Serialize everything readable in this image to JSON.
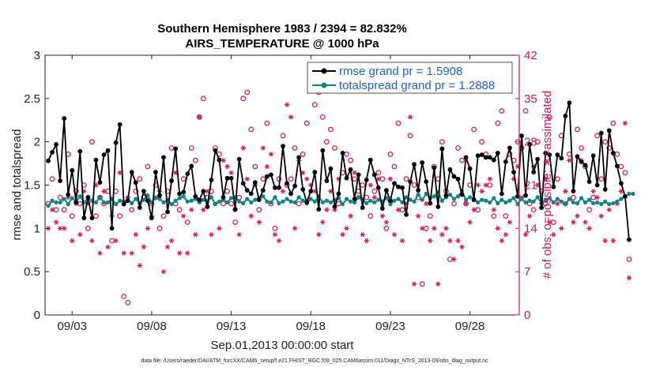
{
  "chart_data": {
    "type": "line",
    "title": "Southern Hemisphere 1983 / 2394 = 82.832%",
    "subtitle": "AIRS_TEMPERATURE @ 1000 hPa",
    "xlabel": "Sep.01,2013 00:00:00 start",
    "ylabel": "rmse and totalspread",
    "y2label": "# of obs: o=possible; ∗=assimilated",
    "footnote": "data file: /Users/raeder/DAI/ATM_forcXX/CAM6_setup/f.e21.FHIST_BGC.f09_025.CAM6assim.011/Diags_NTrS_2013-09/obs_diag_output.nc",
    "xlim": [
      1.3,
      31.1
    ],
    "ylim": [
      0,
      3
    ],
    "y2lim": [
      0,
      42
    ],
    "x_ticks": [
      3,
      8,
      13,
      18,
      23,
      28
    ],
    "x_tick_labels": [
      "09/03",
      "09/08",
      "09/13",
      "09/18",
      "09/23",
      "09/28"
    ],
    "y_ticks": [
      "0",
      "0.5",
      "1",
      "1.5",
      "2",
      "2.5",
      "3"
    ],
    "y2_ticks": [
      "0",
      "7",
      "14",
      "21",
      "28",
      "35",
      "42"
    ],
    "legend_position": "top-right",
    "x_start": 1.5,
    "x_step": 0.25,
    "series": [
      {
        "name": "rmse grand pr = 1.5908",
        "color": "#000000",
        "axis": "left",
        "values": [
          1.78,
          1.88,
          1.97,
          1.55,
          2.27,
          1.39,
          1.67,
          1.3,
          1.89,
          1.12,
          1.36,
          1.12,
          1.79,
          1.53,
          1.85,
          1.9,
          1.0,
          1.99,
          2.2,
          1.28,
          1.32,
          1.65,
          1.53,
          1.24,
          1.43,
          1.32,
          1.12,
          1.65,
          1.38,
          1.82,
          1.19,
          1.55,
          1.92,
          1.4,
          1.42,
          1.63,
          1.72,
          1.37,
          1.33,
          1.43,
          1.25,
          1.56,
          1.9,
          1.79,
          1.36,
          1.58,
          1.58,
          1.22,
          1.8,
          1.52,
          1.44,
          1.4,
          1.53,
          1.33,
          1.44,
          1.6,
          1.62,
          1.47,
          1.47,
          1.95,
          1.52,
          1.4,
          1.49,
          1.82,
          1.45,
          1.3,
          1.43,
          1.65,
          1.22,
          1.9,
          1.55,
          1.69,
          1.25,
          1.4,
          1.87,
          1.58,
          1.68,
          1.34,
          1.62,
          1.24,
          1.56,
          1.79,
          1.62,
          1.47,
          1.23,
          1.44,
          1.32,
          1.52,
          1.48,
          1.47,
          1.16,
          1.54,
          1.74,
          1.44,
          1.76,
          1.54,
          1.29,
          1.7,
          1.25,
          1.92,
          1.38,
          1.68,
          1.6,
          1.57,
          1.39,
          1.82,
          1.69,
          1.33,
          1.84,
          1.85,
          1.82,
          1.82,
          1.79,
          1.87,
          1.4,
          1.77,
          1.93,
          1.65,
          1.37,
          2.07,
          1.38,
          1.97,
          1.65,
          1.8,
          1.24,
          1.87,
          1.85,
          1.48,
          1.85,
          1.81,
          2.3,
          2.45,
          1.43,
          1.83,
          1.77,
          1.73,
          1.54,
          1.84,
          1.5,
          2.1,
          1.45,
          2.13,
          1.87,
          1.72,
          1.52,
          1.37,
          0.87
        ]
      },
      {
        "name": "totalspread grand pr = 1.2888",
        "color": "#0f8583",
        "axis": "left",
        "values": [
          1.26,
          1.32,
          1.3,
          1.3,
          1.34,
          1.28,
          1.35,
          1.31,
          1.37,
          1.3,
          1.35,
          1.32,
          1.3,
          1.36,
          1.3,
          1.3,
          1.34,
          1.28,
          1.32,
          1.31,
          1.33,
          1.29,
          1.34,
          1.29,
          1.33,
          1.38,
          1.3,
          1.35,
          1.34,
          1.3,
          1.33,
          1.28,
          1.32,
          1.35,
          1.37,
          1.31,
          1.32,
          1.34,
          1.3,
          1.33,
          1.31,
          1.36,
          1.28,
          1.31,
          1.33,
          1.3,
          1.35,
          1.36,
          1.31,
          1.29,
          1.34,
          1.3,
          1.33,
          1.35,
          1.37,
          1.31,
          1.3,
          1.36,
          1.29,
          1.31,
          1.34,
          1.31,
          1.3,
          1.36,
          1.32,
          1.29,
          1.34,
          1.31,
          1.37,
          1.3,
          1.32,
          1.3,
          1.33,
          1.35,
          1.28,
          1.34,
          1.31,
          1.3,
          1.36,
          1.34,
          1.29,
          1.32,
          1.3,
          1.33,
          1.31,
          1.35,
          1.28,
          1.32,
          1.34,
          1.3,
          1.36,
          1.33,
          1.31,
          1.39,
          1.33,
          1.4,
          1.35,
          1.37,
          1.42,
          1.32,
          1.36,
          1.39,
          1.34,
          1.37,
          1.43,
          1.33,
          1.36,
          1.34,
          1.3,
          1.33,
          1.32,
          1.3,
          1.35,
          1.29,
          1.33,
          1.3,
          1.32,
          1.35,
          1.28,
          1.34,
          1.3,
          1.32,
          1.31,
          1.36,
          1.29,
          1.33,
          1.35,
          1.3,
          1.34,
          1.31,
          1.28,
          1.34,
          1.3,
          1.29,
          1.35,
          1.3,
          1.33,
          1.29,
          1.3,
          1.28,
          1.31,
          1.28,
          1.29,
          1.31,
          1.34,
          1.37,
          1.4,
          1.4
        ]
      },
      {
        "name": "obs possible",
        "color": "#d4145a",
        "axis": "right",
        "marker": "circle",
        "values": [
          18,
          22,
          17,
          19,
          17,
          26,
          16,
          20,
          18,
          21,
          14,
          28,
          16,
          19,
          18,
          20,
          12,
          20,
          16,
          3,
          2,
          17,
          20,
          22,
          19,
          24,
          18,
          21,
          14,
          16,
          20,
          27,
          18,
          17,
          22,
          15,
          27,
          25,
          32,
          35,
          19,
          20,
          27,
          26,
          18,
          20,
          18,
          15,
          19,
          35,
          36,
          30,
          24,
          17,
          22,
          31,
          18,
          14,
          22,
          29,
          21,
          22,
          27,
          18,
          26,
          31,
          37,
          34,
          36,
          32,
          28,
          30,
          27,
          18,
          23,
          26,
          25,
          22,
          20,
          21,
          19,
          16,
          20,
          23,
          22,
          14,
          26,
          24,
          31,
          17,
          22,
          29,
          21,
          19,
          5,
          14,
          16,
          24,
          22,
          28,
          20,
          9,
          18,
          27,
          25,
          18,
          21,
          30,
          17,
          28,
          26,
          21,
          16,
          31,
          33,
          16,
          26,
          25,
          28,
          27,
          33,
          18,
          17,
          28,
          20,
          18,
          32,
          15,
          22,
          29,
          18,
          26,
          19,
          30,
          27,
          24,
          17,
          19,
          29,
          22,
          28,
          27,
          31,
          26,
          24,
          23,
          9
        ]
      },
      {
        "name": "obs assimilated",
        "color": "#d4145a",
        "axis": "right",
        "marker": "asterisk",
        "values": [
          14,
          17,
          15,
          14,
          14,
          19,
          12,
          18,
          13,
          20,
          18,
          12,
          21,
          10,
          20,
          11,
          16,
          12,
          23,
          10,
          19,
          10,
          13,
          8,
          11,
          14,
          16,
          19,
          20,
          7,
          11,
          12,
          23,
          10,
          16,
          10,
          17,
          13,
          32,
          17,
          20,
          13,
          18,
          14,
          25,
          24,
          23,
          17,
          13,
          27,
          22,
          16,
          21,
          15,
          27,
          24,
          26,
          13,
          12,
          20,
          34,
          32,
          14,
          25,
          23,
          22,
          21,
          20,
          13,
          15,
          17,
          20,
          17,
          22,
          13,
          14,
          16,
          23,
          19,
          13,
          12,
          21,
          19,
          22,
          16,
          15,
          22,
          13,
          17,
          12,
          18,
          32,
          5,
          16,
          14,
          18,
          12,
          14,
          5,
          13,
          14,
          12,
          9,
          12,
          11,
          18,
          15,
          17,
          21,
          20,
          21,
          22,
          17,
          14,
          12,
          13,
          15,
          22,
          24,
          19,
          13,
          16,
          24,
          21,
          18,
          22,
          15,
          13,
          18,
          14,
          20,
          25,
          15,
          16,
          25,
          15,
          14,
          20,
          19,
          16,
          12,
          17,
          12,
          18,
          20,
          31,
          6
        ]
      }
    ]
  }
}
